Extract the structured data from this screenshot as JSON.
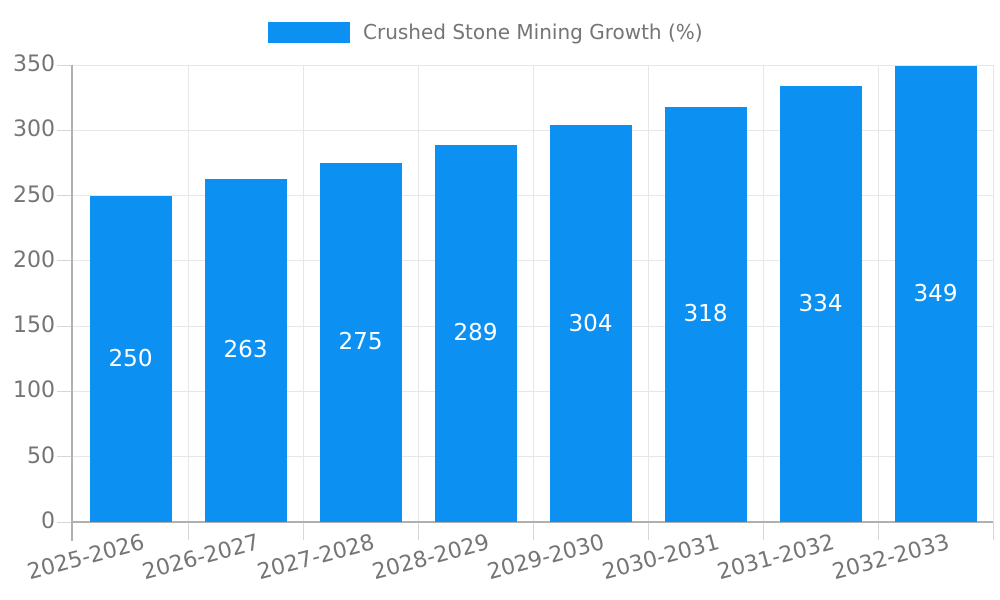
{
  "legend": {
    "position": "top-center",
    "items": [
      {
        "label": "Crushed Stone Mining Growth (%)",
        "color": "#0C90F2"
      }
    ]
  },
  "chart_data": {
    "type": "bar",
    "title": "Crushed Stone Mining Growth (%)",
    "categories": [
      "2025-2026",
      "2026-2027",
      "2027-2028",
      "2028-2029",
      "2029-2030",
      "2030-2031",
      "2031-2032",
      "2032-2033"
    ],
    "values": [
      250,
      263,
      275,
      289,
      304,
      318,
      334,
      349
    ],
    "xlabel": "",
    "ylabel": "",
    "ylim": [
      0,
      350
    ],
    "yticks": [
      0,
      50,
      100,
      150,
      200,
      250,
      300,
      350
    ],
    "grid": "horizontal and vertical gridlines on",
    "legend_position": "top-center",
    "value_labels": "white numbers centered inside bars",
    "x_label_rotation_deg": -15,
    "colors": {
      "bar": "#0C90F2",
      "value_label": "#ffffff",
      "axis_text": "#757575",
      "grid_line": "#e7e7e7",
      "tick_line": "#d6d6d6",
      "axis_line": "#b0b0b0",
      "background": "#ffffff"
    }
  }
}
